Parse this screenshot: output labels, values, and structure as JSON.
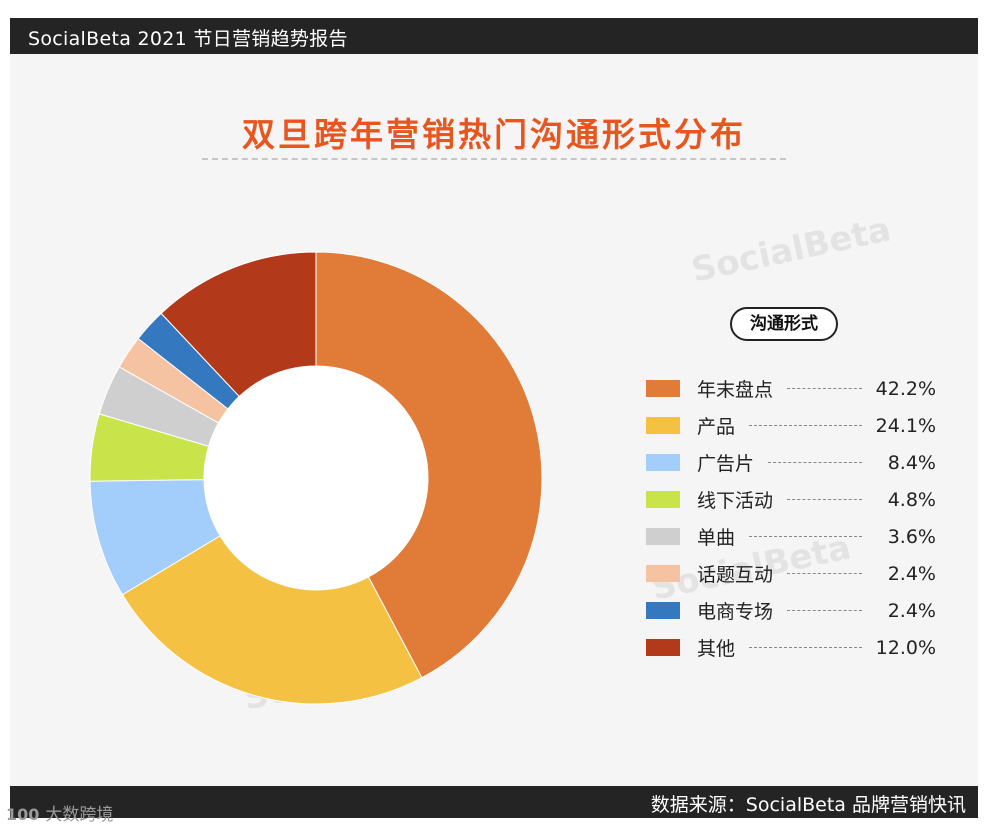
{
  "header": {
    "report_title": "SocialBeta 2021 节日营销趋势报告"
  },
  "watermark": "SocialBeta",
  "footer": {
    "source": "数据来源：SocialBeta 品牌营销快讯"
  },
  "logo": {
    "mark": "100",
    "text": "大数跨境"
  },
  "legend": {
    "title": "沟通形式"
  },
  "chart_data": {
    "type": "pie",
    "title": "双旦跨年营销热门沟通形式分布",
    "donut": true,
    "legend_position": "right",
    "slices": [
      {
        "label": "年末盘点",
        "value": 42.2,
        "value_label": "42.2%",
        "color": "#e07b38"
      },
      {
        "label": "产品",
        "value": 24.1,
        "value_label": "24.1%",
        "color": "#f4c142"
      },
      {
        "label": "广告片",
        "value": 8.4,
        "value_label": "8.4%",
        "color": "#a3cdfa"
      },
      {
        "label": "线下活动",
        "value": 4.8,
        "value_label": "4.8%",
        "color": "#c9e34a"
      },
      {
        "label": "单曲",
        "value": 3.6,
        "value_label": "3.6%",
        "color": "#cfcfcf"
      },
      {
        "label": "话题互动",
        "value": 2.4,
        "value_label": "2.4%",
        "color": "#f6c3a2"
      },
      {
        "label": "电商专场",
        "value": 2.4,
        "value_label": "2.4%",
        "color": "#3479c0"
      },
      {
        "label": "其他",
        "value": 12.0,
        "value_label": "12.0%",
        "color": "#b23a1b"
      }
    ]
  }
}
